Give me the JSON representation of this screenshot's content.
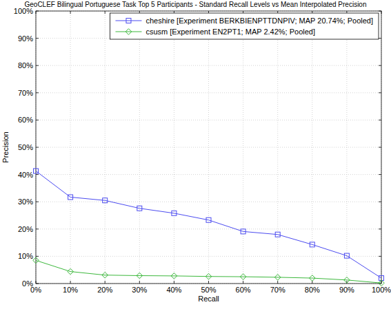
{
  "chart_data": {
    "type": "line",
    "title": "GeoCLEF Bilingual Portuguese Task Top 5 Participants - Standard Recall Levels vs Mean Interpolated Precision",
    "x_label": "Recall",
    "y_label": "Precision",
    "x": [
      0,
      10,
      20,
      30,
      40,
      50,
      60,
      70,
      80,
      90,
      100
    ],
    "series": [
      {
        "name": "cheshire [Experiment BERKBIENPTTDNPIV; MAP 20.74%; Pooled]",
        "color": "#4b4bf0",
        "marker": "square",
        "values": [
          41.3,
          31.7,
          30.5,
          27.6,
          25.8,
          23.3,
          19.1,
          18.0,
          14.3,
          10.2,
          2.0
        ]
      },
      {
        "name": "csusm [Experiment EN2PT1; MAP 2.42%; Pooled]",
        "color": "#3cb83c",
        "marker": "diamond",
        "values": [
          8.5,
          4.4,
          3.1,
          2.9,
          2.8,
          2.6,
          2.5,
          2.3,
          2.0,
          1.3,
          0.2
        ]
      }
    ],
    "xlim": [
      0,
      100
    ],
    "ylim": [
      0,
      100
    ],
    "xticks": [
      {
        "value": 0,
        "label": "0%"
      },
      {
        "value": 10,
        "label": "10%"
      },
      {
        "value": 20,
        "label": "20%"
      },
      {
        "value": 30,
        "label": "30%"
      },
      {
        "value": 40,
        "label": "40%"
      },
      {
        "value": 50,
        "label": "50%"
      },
      {
        "value": 60,
        "label": "60%"
      },
      {
        "value": 70,
        "label": "70%"
      },
      {
        "value": 80,
        "label": "80%"
      },
      {
        "value": 90,
        "label": "90%"
      },
      {
        "value": 100,
        "label": "100%"
      }
    ],
    "yticks": [
      {
        "value": 0,
        "label": "0%"
      },
      {
        "value": 10,
        "label": "10%"
      },
      {
        "value": 20,
        "label": "20%"
      },
      {
        "value": 30,
        "label": "30%"
      },
      {
        "value": 40,
        "label": "40%"
      },
      {
        "value": 50,
        "label": "50%"
      },
      {
        "value": 60,
        "label": "60%"
      },
      {
        "value": 70,
        "label": "70%"
      },
      {
        "value": 80,
        "label": "80%"
      },
      {
        "value": 90,
        "label": "90%"
      },
      {
        "value": 100,
        "label": "100%"
      }
    ],
    "grid": true,
    "legend": "upper right"
  }
}
